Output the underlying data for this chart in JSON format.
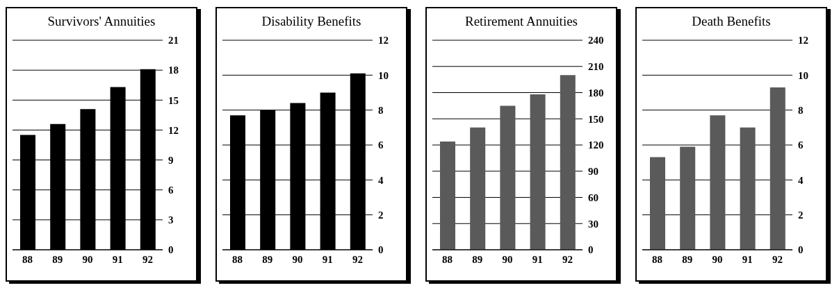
{
  "chart_data": [
    {
      "type": "bar",
      "title": "Survivors' Annuities",
      "categories": [
        "88",
        "89",
        "90",
        "91",
        "92"
      ],
      "values": [
        11.5,
        12.6,
        14.1,
        16.3,
        18.1
      ],
      "color": "#000000",
      "ylim": [
        0,
        21
      ],
      "yticks": [
        0,
        3,
        6,
        9,
        12,
        15,
        18,
        21
      ],
      "grid": "y"
    },
    {
      "type": "bar",
      "title": "Disability Benefits",
      "categories": [
        "88",
        "89",
        "90",
        "91",
        "92"
      ],
      "values": [
        7.7,
        8.0,
        8.4,
        9.0,
        10.1
      ],
      "color": "#000000",
      "ylim": [
        0,
        12
      ],
      "yticks": [
        0,
        2,
        4,
        6,
        8,
        10,
        12
      ],
      "grid": "y"
    },
    {
      "type": "bar",
      "title": "Retirement Annuities",
      "categories": [
        "88",
        "89",
        "90",
        "91",
        "92"
      ],
      "values": [
        124,
        140,
        165,
        178,
        200
      ],
      "color": "#5a5a5a",
      "ylim": [
        0,
        240
      ],
      "yticks": [
        0,
        30,
        60,
        90,
        120,
        150,
        180,
        210,
        240
      ],
      "grid": "y"
    },
    {
      "type": "bar",
      "title": "Death Benefits",
      "categories": [
        "88",
        "89",
        "90",
        "91",
        "92"
      ],
      "values": [
        5.3,
        5.9,
        7.7,
        7.0,
        9.3
      ],
      "color": "#5a5a5a",
      "ylim": [
        0,
        12
      ],
      "yticks": [
        0,
        2,
        4,
        6,
        8,
        10,
        12
      ],
      "grid": "y"
    }
  ]
}
